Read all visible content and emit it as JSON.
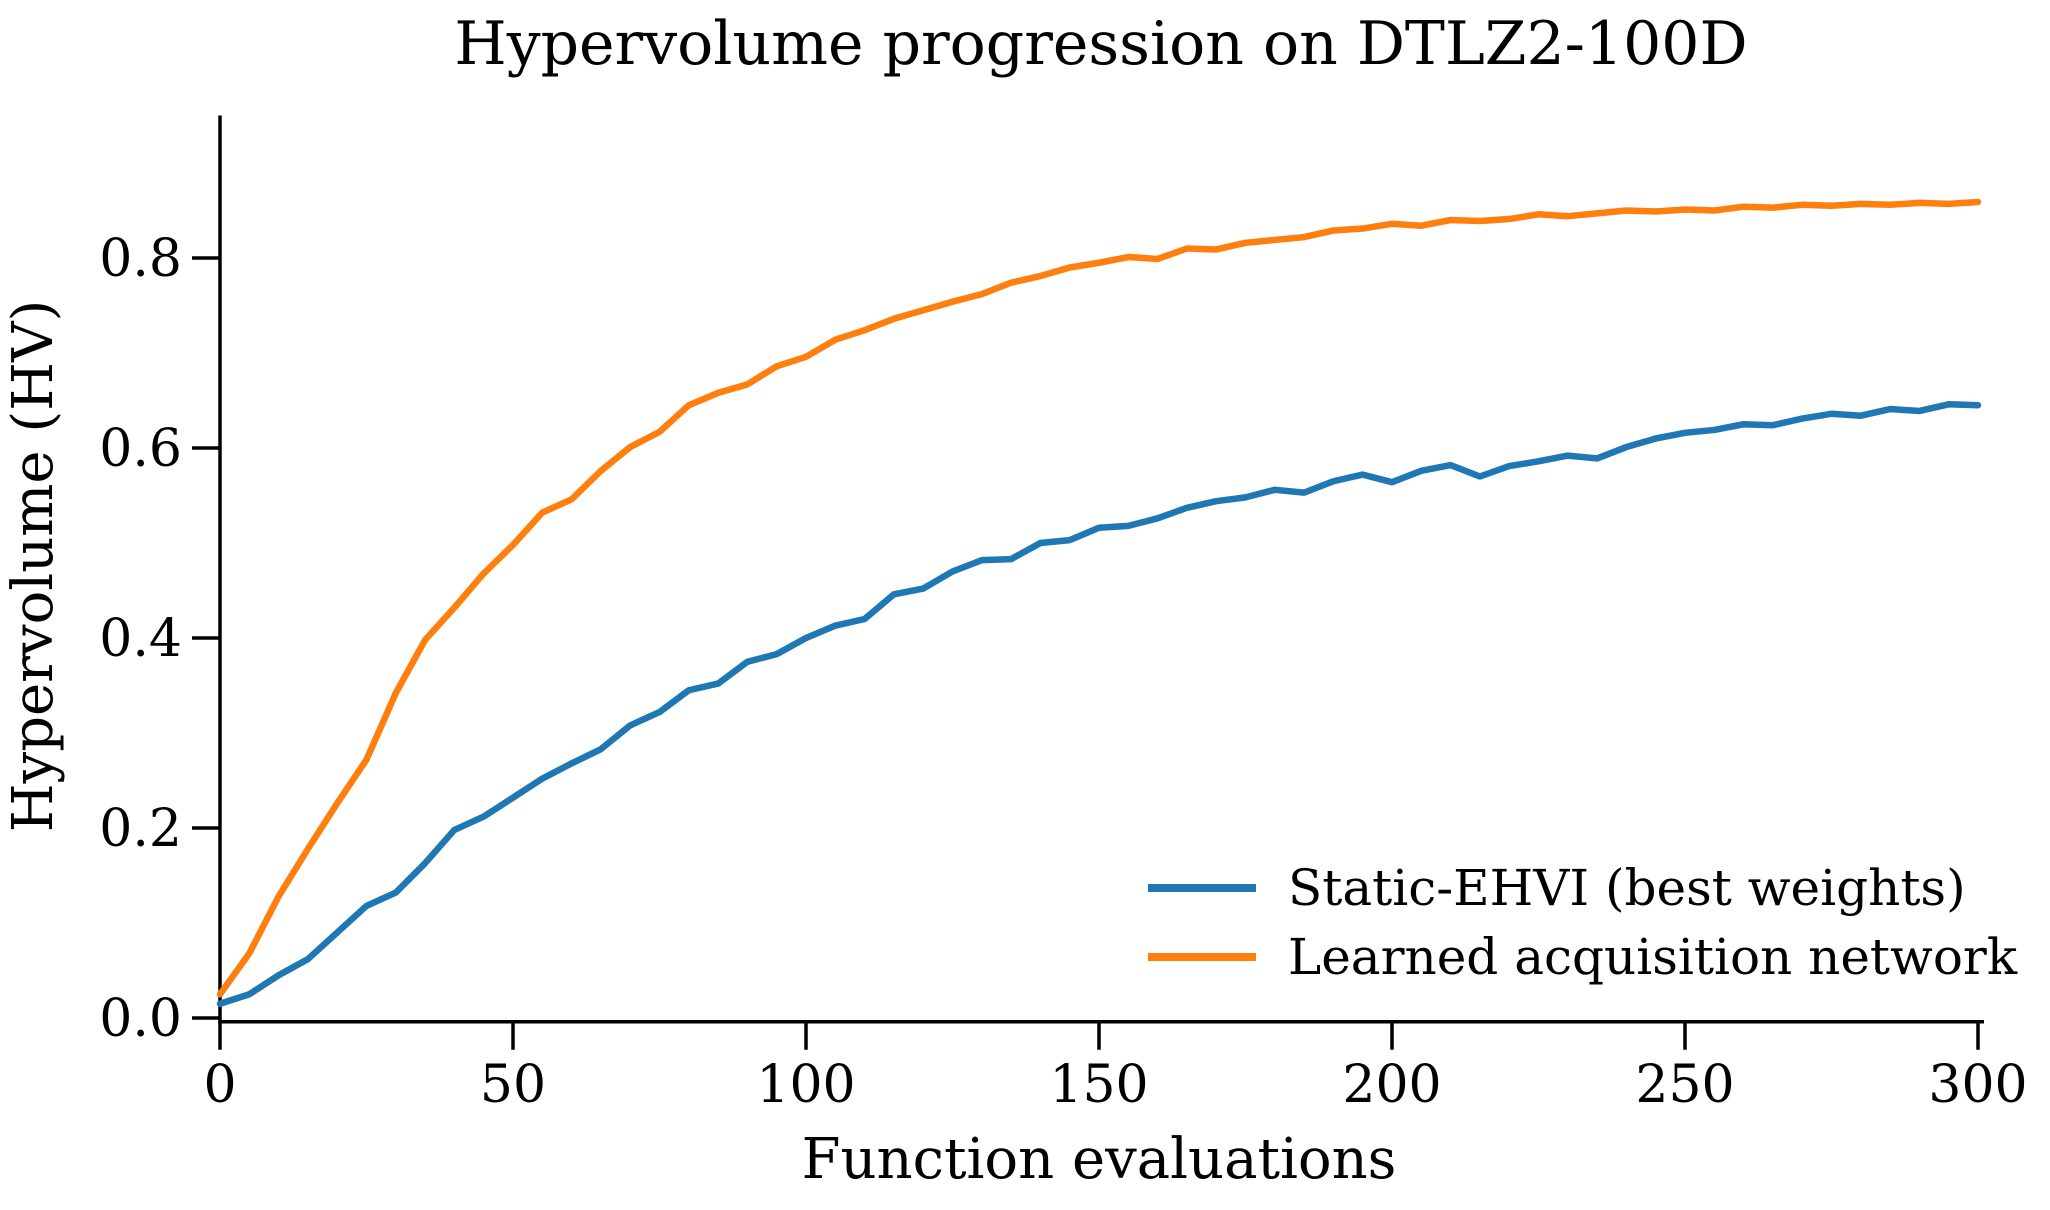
{
  "chart_data": {
    "type": "line",
    "title": "Hypervolume progression on DTLZ2-100D",
    "xlabel": "Function evaluations",
    "ylabel": "Hypervolume (HV)",
    "xlim": [
      0,
      300
    ],
    "ylim": [
      0,
      0.95
    ],
    "grid": false,
    "legend_position": "lower right",
    "legend_frame": false,
    "xticks": {
      "values": [
        0,
        50,
        100,
        150,
        200,
        250,
        300
      ],
      "labels": [
        "0",
        "50",
        "100",
        "150",
        "200",
        "250",
        "300"
      ]
    },
    "yticks": {
      "values": [
        0,
        0.2,
        0.4,
        0.6,
        0.8
      ],
      "labels": [
        "0.0",
        "0.2",
        "0.4",
        "0.6",
        "0.8"
      ]
    },
    "x": [
      0,
      5,
      10,
      15,
      20,
      25,
      30,
      35,
      40,
      45,
      50,
      55,
      60,
      65,
      70,
      75,
      80,
      85,
      90,
      95,
      100,
      105,
      110,
      115,
      120,
      125,
      130,
      135,
      140,
      145,
      150,
      155,
      160,
      165,
      170,
      175,
      180,
      185,
      190,
      195,
      200,
      205,
      210,
      215,
      220,
      225,
      230,
      235,
      240,
      245,
      250,
      255,
      260,
      265,
      270,
      275,
      280,
      285,
      290,
      295,
      300
    ],
    "series": [
      {
        "name": "Static-EHVI (best weights)",
        "color": "#1f77b4",
        "values": [
          0.015,
          0.025,
          0.045,
          0.062,
          0.09,
          0.118,
          0.132,
          0.163,
          0.198,
          0.212,
          0.232,
          0.252,
          0.268,
          0.283,
          0.308,
          0.322,
          0.345,
          0.352,
          0.375,
          0.383,
          0.4,
          0.413,
          0.42,
          0.446,
          0.452,
          0.47,
          0.482,
          0.483,
          0.5,
          0.503,
          0.516,
          0.518,
          0.526,
          0.537,
          0.544,
          0.548,
          0.556,
          0.553,
          0.565,
          0.572,
          0.564,
          0.576,
          0.582,
          0.57,
          0.581,
          0.586,
          0.592,
          0.589,
          0.601,
          0.61,
          0.616,
          0.619,
          0.625,
          0.624,
          0.631,
          0.636,
          0.634,
          0.641,
          0.639,
          0.646,
          0.645
        ]
      },
      {
        "name": "Learned acquisition network",
        "color": "#ff7f0e",
        "values": [
          0.025,
          0.068,
          0.128,
          0.178,
          0.226,
          0.272,
          0.342,
          0.398,
          0.432,
          0.468,
          0.498,
          0.532,
          0.546,
          0.576,
          0.601,
          0.617,
          0.645,
          0.658,
          0.667,
          0.686,
          0.696,
          0.714,
          0.724,
          0.736,
          0.745,
          0.754,
          0.762,
          0.774,
          0.781,
          0.79,
          0.795,
          0.801,
          0.799,
          0.81,
          0.809,
          0.816,
          0.819,
          0.822,
          0.829,
          0.831,
          0.836,
          0.834,
          0.84,
          0.839,
          0.841,
          0.846,
          0.844,
          0.847,
          0.85,
          0.849,
          0.851,
          0.85,
          0.854,
          0.853,
          0.856,
          0.855,
          0.857,
          0.856,
          0.858,
          0.857,
          0.859
        ]
      }
    ],
    "axis_color": "#000000",
    "line_width": 6.5
  }
}
